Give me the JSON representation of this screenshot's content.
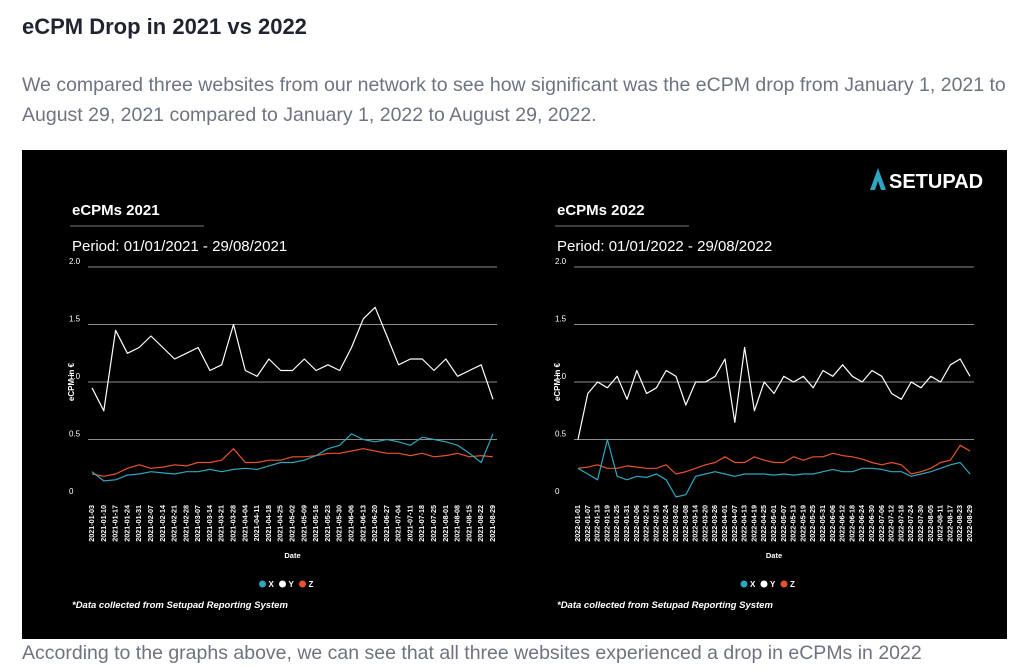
{
  "heading": "eCPM Drop in 2021 vs 2022",
  "intro": "We compared three websites from our network to see how significant was the eCPM drop from January 1, 2021 to August 29, 2021 compared to January 1, 2022 to August 29, 2022.",
  "tail_text": "According to the graphs above, we can see that all three websites experienced a drop in eCPMs in 2022",
  "brand": {
    "name": "SETUPAD",
    "color": "#ffffff"
  },
  "colors": {
    "X": "#2fa6bf",
    "Y": "#ffffff",
    "Z": "#e8532a",
    "background": "#000000"
  },
  "chart_data": [
    {
      "type": "line",
      "title": "eCPMs 2021",
      "subtitle": "Period: 01/01/2021 - 29/08/2021",
      "xlabel": "Date",
      "ylabel": "eCPM in €",
      "ylim": [
        0,
        2.0
      ],
      "yticks": [
        "0",
        "0.5",
        "1.0",
        "1.5",
        "2.0"
      ],
      "x_start": "2021-01-03",
      "x_end": "2021-08-29",
      "x_tick_labels": [
        "2021-01-03",
        "2021-01-10",
        "2021-01-17",
        "2021-01-24",
        "2021-01-31",
        "2021-02-07",
        "2021-02-14",
        "2021-02-21",
        "2021-02-28",
        "2021-03-07",
        "2021-03-14",
        "2021-03-21",
        "2021-03-28",
        "2021-04-04",
        "2021-04-11",
        "2021-04-18",
        "2021-04-25",
        "2021-05-02",
        "2021-05-09",
        "2021-05-16",
        "2021-05-23",
        "2021-05-30",
        "2021-06-06",
        "2021-06-13",
        "2021-06-20",
        "2021-06-27",
        "2021-07-04",
        "2021-07-11",
        "2021-07-18",
        "2021-07-25",
        "2021-08-01",
        "2021-08-08",
        "2021-08-15",
        "2021-08-22",
        "2021-08-29"
      ],
      "legend": [
        "X",
        "Y",
        "Z"
      ],
      "legend_position": "bottom",
      "footnote": "*Data collected from Setupad Reporting System",
      "series": [
        {
          "name": "X",
          "values": [
            0.22,
            0.14,
            0.15,
            0.19,
            0.2,
            0.22,
            0.21,
            0.2,
            0.22,
            0.22,
            0.24,
            0.22,
            0.24,
            0.25,
            0.24,
            0.27,
            0.3,
            0.3,
            0.32,
            0.36,
            0.42,
            0.45,
            0.55,
            0.5,
            0.48,
            0.5,
            0.48,
            0.45,
            0.52,
            0.5,
            0.48,
            0.45,
            0.38,
            0.3,
            0.55
          ]
        },
        {
          "name": "Y",
          "values": [
            0.95,
            0.75,
            1.45,
            1.25,
            1.3,
            1.4,
            1.3,
            1.2,
            1.25,
            1.3,
            1.1,
            1.15,
            1.5,
            1.1,
            1.05,
            1.2,
            1.1,
            1.1,
            1.2,
            1.1,
            1.15,
            1.1,
            1.3,
            1.55,
            1.65,
            1.4,
            1.15,
            1.2,
            1.2,
            1.1,
            1.2,
            1.05,
            1.1,
            1.15,
            0.85
          ]
        },
        {
          "name": "Z",
          "values": [
            0.2,
            0.18,
            0.2,
            0.25,
            0.28,
            0.25,
            0.26,
            0.28,
            0.27,
            0.3,
            0.3,
            0.32,
            0.42,
            0.3,
            0.3,
            0.32,
            0.32,
            0.35,
            0.35,
            0.36,
            0.38,
            0.38,
            0.4,
            0.42,
            0.4,
            0.38,
            0.38,
            0.36,
            0.38,
            0.35,
            0.36,
            0.38,
            0.35,
            0.36,
            0.35
          ]
        }
      ]
    },
    {
      "type": "line",
      "title": "eCPMs 2022",
      "subtitle": "Period: 01/01/2022 - 29/08/2022",
      "xlabel": "Date",
      "ylabel": "eCPM in €",
      "ylim": [
        0,
        2.0
      ],
      "yticks": [
        "0",
        "0.5",
        "1.0",
        "1.5",
        "2.0"
      ],
      "x_start": "2022-01-01",
      "x_end": "2022-08-29",
      "x_tick_labels": [
        "2022-01-01",
        "2022-01-07",
        "2022-01-13",
        "2022-01-19",
        "2022-01-25",
        "2022-01-31",
        "2022-02-06",
        "2022-02-12",
        "2022-02-18",
        "2022-02-24",
        "2022-03-02",
        "2022-03-08",
        "2022-03-14",
        "2022-03-20",
        "2022-03-26",
        "2022-04-01",
        "2022-04-07",
        "2022-04-13",
        "2022-04-19",
        "2022-04-25",
        "2022-05-01",
        "2022-05-07",
        "2022-05-13",
        "2022-05-19",
        "2022-05-25",
        "2022-05-31",
        "2022-06-06",
        "2022-06-12",
        "2022-06-18",
        "2022-06-24",
        "2022-06-30",
        "2022-07-06",
        "2022-07-12",
        "2022-07-18",
        "2022-07-24",
        "2022-07-30",
        "2022-08-05",
        "2022-08-11",
        "2022-08-17",
        "2022-08-23",
        "2022-08-29"
      ],
      "legend": [
        "X",
        "Y",
        "Z"
      ],
      "legend_position": "bottom",
      "footnote": "*Data collected from Setupad Reporting System",
      "series": [
        {
          "name": "X",
          "values": [
            0.25,
            0.2,
            0.15,
            0.5,
            0.18,
            0.15,
            0.18,
            0.17,
            0.2,
            0.15,
            0.0,
            0.02,
            0.18,
            0.2,
            0.22,
            0.2,
            0.18,
            0.2,
            0.2,
            0.2,
            0.19,
            0.2,
            0.19,
            0.2,
            0.2,
            0.22,
            0.24,
            0.22,
            0.22,
            0.25,
            0.25,
            0.24,
            0.22,
            0.22,
            0.18,
            0.2,
            0.22,
            0.25,
            0.28,
            0.3,
            0.2
          ]
        },
        {
          "name": "Y",
          "values": [
            0.5,
            0.9,
            1.0,
            0.95,
            1.05,
            0.85,
            1.1,
            0.9,
            0.95,
            1.1,
            1.05,
            0.8,
            1.0,
            1.0,
            1.05,
            1.2,
            0.65,
            1.3,
            0.75,
            1.0,
            0.9,
            1.05,
            1.0,
            1.05,
            0.95,
            1.1,
            1.05,
            1.15,
            1.05,
            1.0,
            1.1,
            1.05,
            0.9,
            0.85,
            1.0,
            0.95,
            1.05,
            1.0,
            1.15,
            1.2,
            1.05
          ]
        },
        {
          "name": "Z",
          "values": [
            0.25,
            0.26,
            0.28,
            0.25,
            0.25,
            0.27,
            0.26,
            0.25,
            0.25,
            0.28,
            0.2,
            0.22,
            0.25,
            0.28,
            0.3,
            0.35,
            0.3,
            0.3,
            0.35,
            0.32,
            0.3,
            0.3,
            0.35,
            0.32,
            0.35,
            0.35,
            0.38,
            0.36,
            0.35,
            0.33,
            0.3,
            0.28,
            0.3,
            0.28,
            0.2,
            0.22,
            0.25,
            0.3,
            0.32,
            0.45,
            0.4
          ]
        }
      ]
    }
  ]
}
